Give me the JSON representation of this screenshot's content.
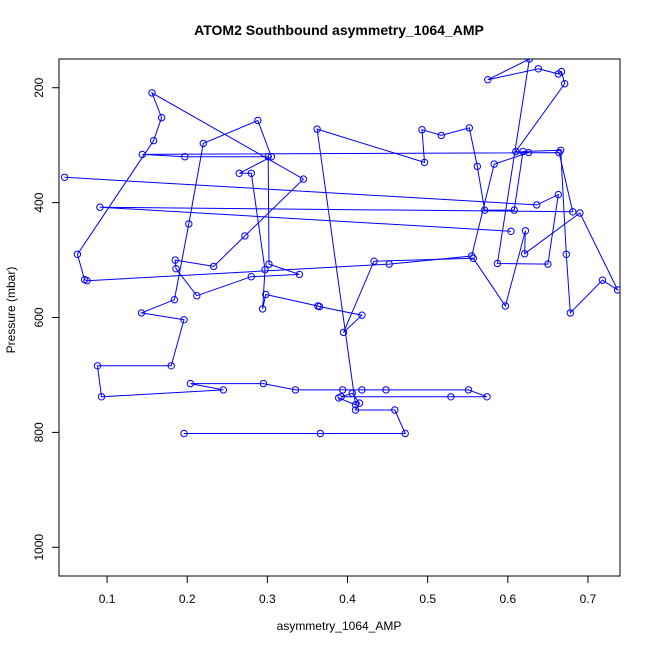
{
  "chart_data": {
    "type": "line",
    "title": "ATOM2 Southbound asymmetry_1064_AMP",
    "xlabel": "asymmetry_1064_AMP",
    "ylabel": "Pressure (mbar)",
    "xlim": [
      0.04,
      0.74
    ],
    "ylim": [
      1050,
      150
    ],
    "y_inverted": true,
    "x_ticks": [
      0.1,
      0.2,
      0.3,
      0.4,
      0.5,
      0.6,
      0.7
    ],
    "x_tick_labels": [
      "0.1",
      "0.2",
      "0.3",
      "0.4",
      "0.5",
      "0.6",
      "0.7"
    ],
    "y_ticks": [
      200,
      400,
      600,
      800,
      1000
    ],
    "y_tick_labels": [
      "200",
      "400",
      "600",
      "800",
      "1000"
    ],
    "grid": false,
    "series": [
      {
        "color": "#0000ff",
        "marker": "open-circle",
        "points": [
          [
            0.196,
            802
          ],
          [
            0.366,
            802
          ],
          [
            0.472,
            802
          ],
          [
            0.459,
            761
          ],
          [
            0.41,
            761
          ],
          [
            0.415,
            749
          ],
          [
            0.406,
            732
          ],
          [
            0.392,
            738
          ],
          [
            0.529,
            738
          ],
          [
            0.574,
            738
          ],
          [
            0.551,
            726
          ],
          [
            0.448,
            726
          ],
          [
            0.418,
            726
          ],
          [
            0.394,
            726
          ],
          [
            0.335,
            726
          ],
          [
            0.295,
            715
          ],
          [
            0.204,
            715
          ],
          [
            0.245,
            726
          ],
          [
            0.093,
            738
          ],
          [
            0.088,
            684
          ],
          [
            0.18,
            684
          ],
          [
            0.196,
            604
          ],
          [
            0.143,
            592
          ],
          [
            0.184,
            569
          ],
          [
            0.202,
            437
          ],
          [
            0.22,
            297
          ],
          [
            0.288,
            257
          ],
          [
            0.305,
            320
          ],
          [
            0.265,
            349
          ],
          [
            0.28,
            349
          ],
          [
            0.297,
            517
          ],
          [
            0.294,
            585
          ],
          [
            0.298,
            560
          ],
          [
            0.363,
            580
          ],
          [
            0.365,
            581
          ],
          [
            0.418,
            596
          ],
          [
            0.395,
            626
          ],
          [
            0.433,
            502
          ],
          [
            0.557,
            497
          ],
          [
            0.597,
            580
          ],
          [
            0.622,
            449
          ],
          [
            0.621,
            489
          ],
          [
            0.69,
            418
          ],
          [
            0.737,
            552
          ],
          [
            0.718,
            535
          ],
          [
            0.678,
            592
          ],
          [
            0.673,
            490
          ],
          [
            0.666,
            309
          ],
          [
            0.619,
            311
          ],
          [
            0.608,
            413
          ],
          [
            0.571,
            413
          ],
          [
            0.562,
            337
          ],
          [
            0.552,
            270
          ],
          [
            0.517,
            283
          ],
          [
            0.493,
            273
          ],
          [
            0.496,
            330
          ],
          [
            0.362,
            272
          ],
          [
            0.41,
            752
          ],
          [
            0.389,
            740
          ]
        ]
      },
      {
        "color": "#0000ff",
        "marker": "open-circle",
        "points": [
          [
            0.047,
            356
          ],
          [
            0.636,
            404
          ],
          [
            0.663,
            386
          ],
          [
            0.65,
            507
          ],
          [
            0.587,
            506
          ],
          [
            0.627,
            150
          ],
          [
            0.575,
            186
          ],
          [
            0.638,
            167
          ],
          [
            0.663,
            176
          ],
          [
            0.667,
            172
          ],
          [
            0.671,
            193
          ],
          [
            0.61,
            311
          ],
          [
            0.626,
            313
          ],
          [
            0.583,
            333
          ],
          [
            0.555,
            493
          ],
          [
            0.452,
            507
          ],
          [
            0.075,
            536
          ],
          [
            0.072,
            534
          ],
          [
            0.063,
            490
          ],
          [
            0.158,
            292
          ],
          [
            0.168,
            252
          ],
          [
            0.156,
            209
          ],
          [
            0.345,
            359
          ],
          [
            0.272,
            458
          ],
          [
            0.233,
            511
          ],
          [
            0.185,
            500
          ],
          [
            0.186,
            515
          ],
          [
            0.212,
            562
          ],
          [
            0.28,
            529
          ],
          [
            0.34,
            525
          ],
          [
            0.302,
            507
          ],
          [
            0.301,
            320
          ],
          [
            0.197,
            320
          ],
          [
            0.144,
            316
          ],
          [
            0.664,
            313
          ],
          [
            0.681,
            416
          ],
          [
            0.091,
            408
          ],
          [
            0.604,
            450
          ]
        ]
      }
    ]
  }
}
